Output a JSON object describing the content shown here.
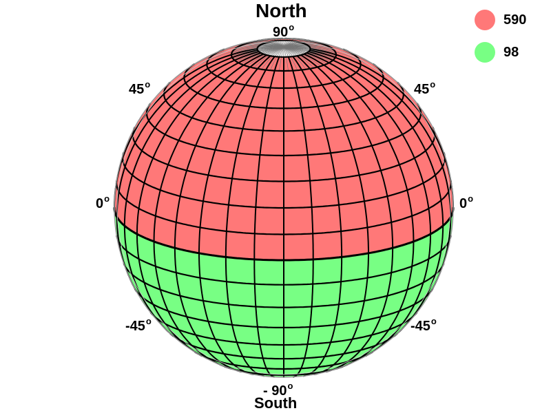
{
  "title": "North",
  "bottom_label": "South",
  "degree_symbol": "o",
  "latitude_labels": {
    "top": "90",
    "upper_left": "45",
    "upper_right": "45",
    "equator_left": "0",
    "equator_right": "0",
    "lower_left": "-45",
    "lower_right": "-45",
    "bottom": "- 90"
  },
  "legend": [
    {
      "label": "590",
      "color": "#ff7878"
    },
    {
      "label": "98",
      "color": "#78ff84"
    }
  ],
  "colors": {
    "upper_region": "#ff7878",
    "lower_region": "#78ff84",
    "grid": "#000000",
    "thin_grid": "#777777"
  }
}
